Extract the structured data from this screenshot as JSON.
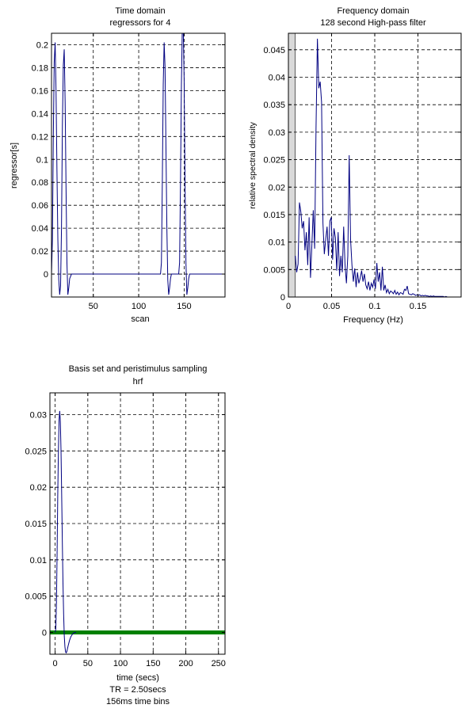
{
  "chart_data": [
    {
      "id": "time-domain",
      "type": "line",
      "title": "Time domain",
      "subtitle": "regressors for 4",
      "xlabel": "scan",
      "ylabel": "regressor[s]",
      "xlim": [
        4,
        195
      ],
      "ylim": [
        -0.02,
        0.21
      ],
      "xticks": [
        50,
        100,
        150
      ],
      "yticks": [
        0,
        0.02,
        0.04,
        0.06,
        0.08,
        0.1,
        0.12,
        0.14,
        0.16,
        0.18,
        0.2
      ],
      "ytick_labels": [
        "0",
        "0.02",
        "0.04",
        "0.06",
        "0.08",
        "0.1",
        "0.12",
        "0.14",
        "0.16",
        "0.18",
        "0.2"
      ],
      "xtick_labels": [
        "50",
        "100",
        "150"
      ],
      "grid": true,
      "line_color": "#000080",
      "series": [
        {
          "x": [
            4,
            5,
            6,
            7,
            8,
            9,
            10,
            11,
            12,
            13,
            14,
            15,
            16,
            17,
            18,
            19,
            20,
            21,
            22,
            23,
            24,
            26,
            40,
            60,
            80,
            100,
            120,
            121,
            122,
            123,
            124,
            125,
            126,
            127,
            128,
            129,
            130,
            131,
            132,
            133,
            134,
            135,
            136,
            137,
            138,
            139,
            140,
            141,
            142,
            143,
            144,
            145,
            146,
            147,
            148,
            149,
            150,
            151,
            152,
            153,
            154,
            155,
            156,
            157,
            158,
            160,
            170,
            180,
            195
          ],
          "y": [
            0,
            0.03,
            0.12,
            0.185,
            0.202,
            0.16,
            0.09,
            0.03,
            -0.005,
            -0.018,
            -0.01,
            0.04,
            0.13,
            0.182,
            0.196,
            0.15,
            0.075,
            0.01,
            -0.018,
            -0.012,
            -0.004,
            0,
            0,
            0,
            0,
            0,
            0,
            0,
            0,
            0,
            0,
            0.01,
            0.08,
            0.165,
            0.202,
            0.18,
            0.11,
            0.04,
            -0.005,
            -0.018,
            -0.012,
            -0.004,
            0,
            0,
            0,
            0,
            0,
            0,
            0,
            0,
            0,
            0.01,
            0.08,
            0.165,
            0.215,
            0.215,
            0.17,
            0.08,
            0.01,
            -0.018,
            -0.012,
            -0.004,
            0,
            0,
            0,
            0,
            0,
            0,
            0
          ]
        }
      ]
    },
    {
      "id": "frequency-domain",
      "type": "line",
      "title": "Frequency domain",
      "subtitle": "128 second High-pass filter",
      "xlabel": "Frequency (Hz)",
      "ylabel": "relative spectral density",
      "xlim": [
        0,
        0.2
      ],
      "ylim": [
        0,
        0.048
      ],
      "xticks": [
        0,
        0.05,
        0.1,
        0.15
      ],
      "xtick_labels": [
        "0",
        "0.05",
        "0.1",
        "0.15"
      ],
      "yticks": [
        0,
        0.005,
        0.01,
        0.015,
        0.02,
        0.025,
        0.03,
        0.035,
        0.04,
        0.045
      ],
      "ytick_labels": [
        "0",
        "0.005",
        "0.01",
        "0.015",
        "0.02",
        "0.025",
        "0.03",
        "0.035",
        "0.04",
        "0.045"
      ],
      "grid": true,
      "filtered_band": [
        0,
        0.0078
      ],
      "filtered_band_color": "#d9d9d9",
      "line_color": "#000080",
      "series": [
        {
          "x": [
            0.008,
            0.0096,
            0.0112,
            0.0128,
            0.0144,
            0.016,
            0.0176,
            0.0192,
            0.0208,
            0.0224,
            0.024,
            0.0256,
            0.0272,
            0.0288,
            0.0304,
            0.032,
            0.0336,
            0.0352,
            0.0368,
            0.0384,
            0.04,
            0.0416,
            0.0432,
            0.0448,
            0.0464,
            0.048,
            0.0496,
            0.0512,
            0.0528,
            0.0544,
            0.056,
            0.0576,
            0.0592,
            0.0608,
            0.0624,
            0.064,
            0.0656,
            0.0672,
            0.0688,
            0.0704,
            0.072,
            0.0736,
            0.0752,
            0.0768,
            0.0784,
            0.08,
            0.0816,
            0.0832,
            0.0848,
            0.0864,
            0.088,
            0.0896,
            0.0912,
            0.0928,
            0.0944,
            0.096,
            0.0976,
            0.0992,
            0.1008,
            0.1024,
            0.104,
            0.1056,
            0.1072,
            0.1088,
            0.1104,
            0.112,
            0.1136,
            0.1152,
            0.1168,
            0.1184,
            0.12,
            0.1216,
            0.1232,
            0.1248,
            0.1264,
            0.128,
            0.1296,
            0.1312,
            0.1328,
            0.1344,
            0.136,
            0.1376,
            0.1392,
            0.1408,
            0.1424,
            0.144,
            0.1456,
            0.1472,
            0.1488,
            0.1504,
            0.152,
            0.1536,
            0.1552,
            0.1568,
            0.1584,
            0.16,
            0.1616,
            0.1632,
            0.1648,
            0.1664,
            0.168,
            0.1696,
            0.1712,
            0.1728,
            0.1744,
            0.176,
            0.1776,
            0.1792,
            0.1808,
            0.1824,
            0.184,
            0.1856,
            0.1872,
            0.1888,
            0.1904,
            0.192,
            0.1936,
            0.1952,
            0.1968
          ],
          "y": [
            0.0075,
            0.0045,
            0.006,
            0.0172,
            0.0155,
            0.0125,
            0.0138,
            0.0085,
            0.0118,
            0.0058,
            0.0145,
            0.0035,
            0.0095,
            0.0158,
            0.0088,
            0.0308,
            0.047,
            0.038,
            0.0392,
            0.0355,
            0.0135,
            0.0078,
            0.0105,
            0.0128,
            0.0075,
            0.0138,
            0.0145,
            0.0068,
            0.0125,
            0.0108,
            0.0048,
            0.0118,
            0.0038,
            0.0075,
            0.0045,
            0.0128,
            0.0058,
            0.0025,
            0.0075,
            0.0258,
            0.0105,
            0.0058,
            0.0028,
            0.0052,
            0.0018,
            0.0045,
            0.0025,
            0.0035,
            0.0048,
            0.0028,
            0.0042,
            0.0022,
            0.0015,
            0.0028,
            0.0012,
            0.0025,
            0.0018,
            0.0032,
            0.0015,
            0.0062,
            0.0028,
            0.0045,
            0.0012,
            0.0055,
            0.0012,
            0.0022,
            0.0008,
            0.0014,
            0.0006,
            0.0011,
            0.0009,
            0.0006,
            0.0012,
            0.0005,
            0.0009,
            0.0004,
            0.0008,
            0.0007,
            0.0005,
            0.0014,
            0.0012,
            0.002,
            0.0006,
            0.0005,
            0.0004,
            0.0006,
            0.0005,
            0.0003,
            0.0004,
            0.0003,
            0.0004,
            0.0002,
            0.0003,
            0.0002,
            0.0003,
            0.0002,
            0.0002,
            0.0001,
            0.0002,
            0.0001,
            0.0002,
            0.0001,
            0.0001,
            0.0001,
            0.0001,
            0.0001,
            0.0001,
            0.0001,
            0.0,
            0.0001,
            0.0,
            0.0,
            0.0,
            0.0,
            0.0,
            0.0,
            0.0,
            0.0,
            0.0
          ]
        }
      ]
    },
    {
      "id": "basis-set",
      "type": "line",
      "title": "Basis set and peristimulus sampling",
      "subtitle": "hrf",
      "xlabel": "time (secs)",
      "xlabel_notes": [
        "TR = 2.50secs",
        "156ms time bins"
      ],
      "xlim": [
        -8,
        260
      ],
      "ylim": [
        -0.003,
        0.033
      ],
      "xticks": [
        0,
        50,
        100,
        150,
        200,
        250
      ],
      "xtick_labels": [
        "0",
        "50",
        "100",
        "150",
        "200",
        "250"
      ],
      "yticks": [
        0,
        0.005,
        0.01,
        0.015,
        0.02,
        0.025,
        0.03
      ],
      "ytick_labels": [
        "0",
        "0.005",
        "0.01",
        "0.015",
        "0.02",
        "0.025",
        "0.03"
      ],
      "grid": true,
      "line_color": "#000080",
      "sampling_color": "#008000",
      "sampling_range": [
        -8,
        260
      ],
      "series": [
        {
          "x": [
            0,
            1,
            2,
            3,
            4,
            5,
            6,
            7,
            8,
            9,
            10,
            11,
            12,
            13,
            14,
            15,
            16,
            17,
            18,
            19,
            20,
            22,
            24,
            26,
            28,
            30,
            32
          ],
          "y": [
            0,
            0.0005,
            0.004,
            0.011,
            0.019,
            0.025,
            0.0292,
            0.0305,
            0.029,
            0.025,
            0.019,
            0.0125,
            0.0068,
            0.0025,
            -0.0005,
            -0.002,
            -0.0027,
            -0.0028,
            -0.0026,
            -0.0022,
            -0.0018,
            -0.0011,
            -0.0006,
            -0.0003,
            -0.0001,
            0,
            0
          ]
        }
      ]
    }
  ]
}
